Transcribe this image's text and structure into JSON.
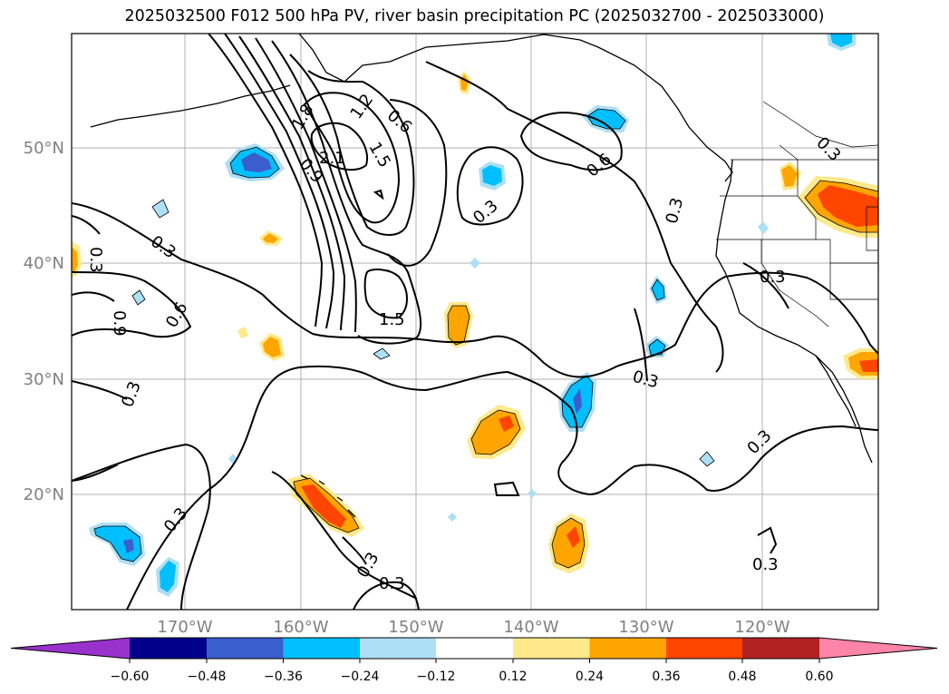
{
  "title": "2025032500 F012 500 hPa PV, river basin precipitation PC (2025032700 - 2025033000)",
  "axes": {
    "lat_ticks": [
      "50°N",
      "40°N",
      "30°N",
      "20°N"
    ],
    "lon_ticks": [
      "170°W",
      "160°W",
      "150°W",
      "140°W",
      "130°W",
      "120°W"
    ]
  },
  "contour_labels": [
    "1.8",
    "1.2",
    "0.6",
    "2.1",
    "1.5",
    "0.9",
    "0.3",
    "0.6",
    "0.3",
    "0.3",
    "0.6",
    "0.9",
    "0.3",
    "1.5",
    "0.3",
    "0.3",
    "0.3",
    "0.3",
    "0.3",
    "0.3",
    "0.3",
    "0.3",
    "0.3"
  ],
  "colorbar": {
    "tick_labels": [
      "−0.60",
      "−0.48",
      "−0.36",
      "−0.24",
      "−0.12",
      "0.12",
      "0.24",
      "0.36",
      "0.48",
      "0.60"
    ],
    "colors": [
      "#9932CC",
      "#00008B",
      "#3A5FCD",
      "#00BFFF",
      "#ADDFF5",
      "#FFFFFF",
      "#FFE98A",
      "#FFA500",
      "#FF4500",
      "#B22222",
      "#FF85A8"
    ]
  },
  "shading_colors": {
    "pos_light": "#FFE98A",
    "pos_mid": "#FFA500",
    "pos_strong": "#FF4500",
    "neg_light": "#ADDFF5",
    "neg_mid": "#00BFFF",
    "neg_strong": "#3A5FCD"
  }
}
